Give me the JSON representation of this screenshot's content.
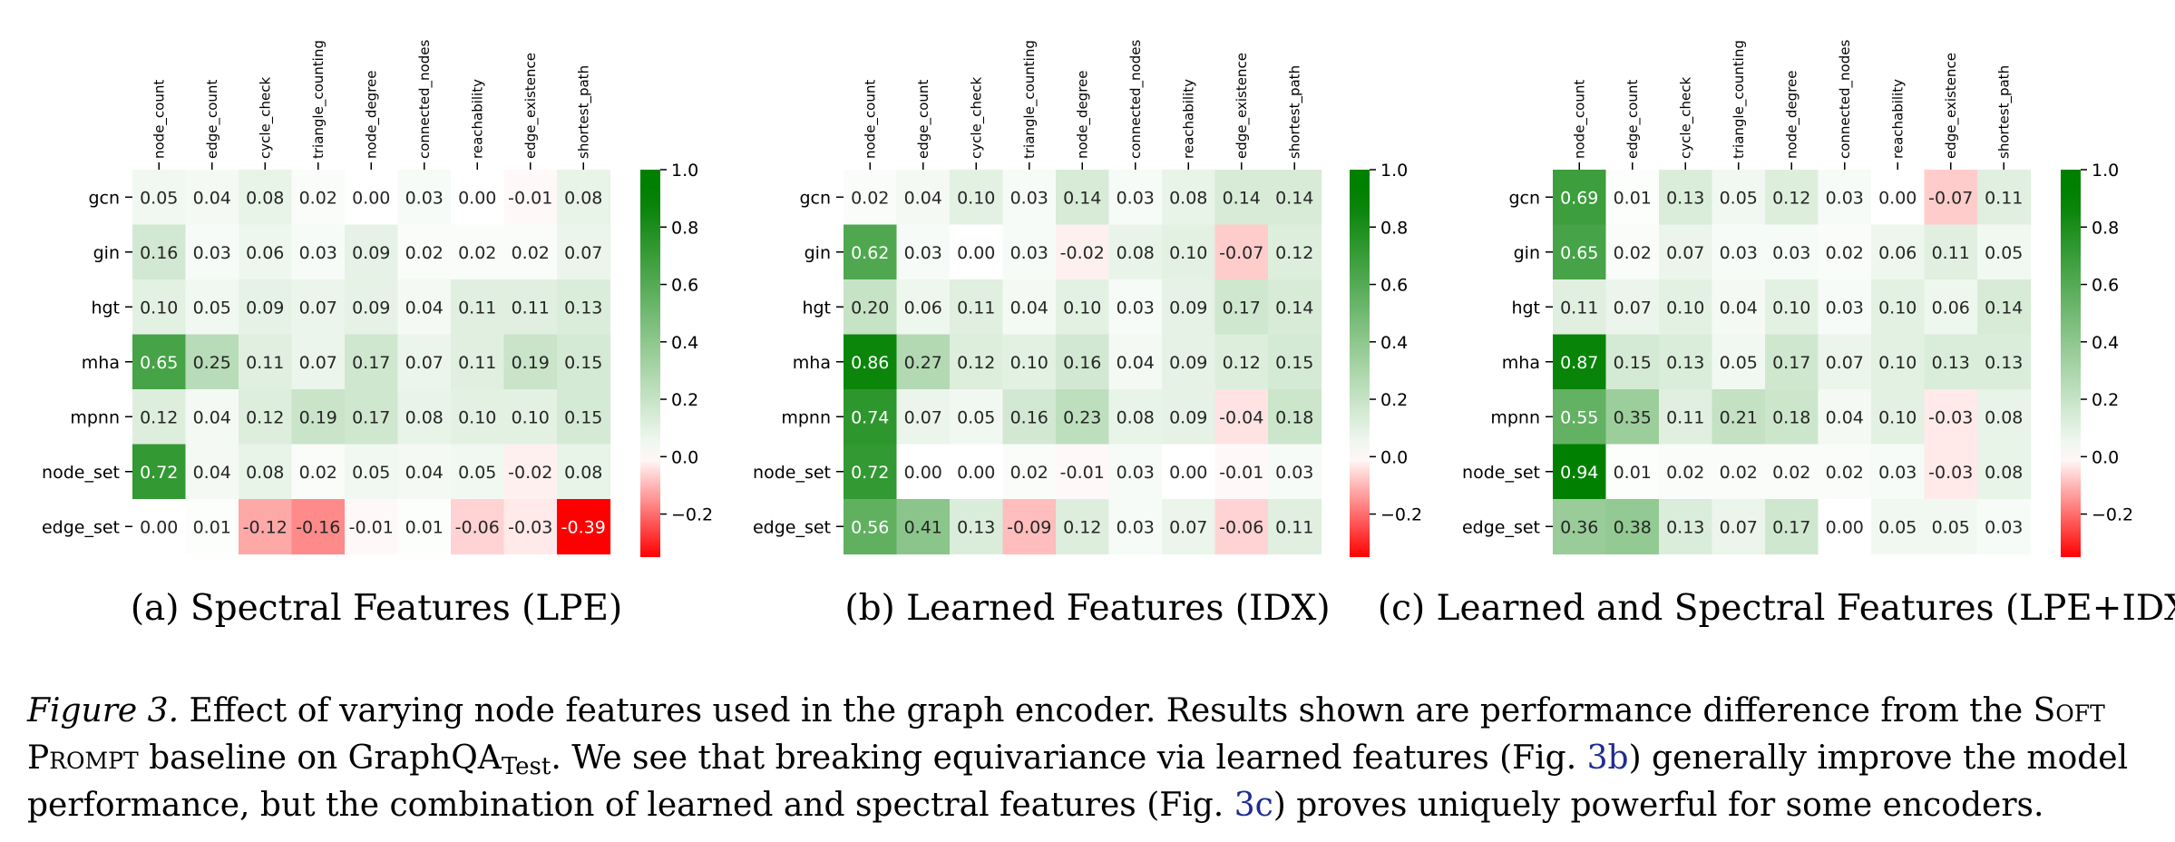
{
  "chart_data": [
    {
      "type": "heatmap",
      "panel_label": "(a) Spectral Features (LPE)",
      "x_labels": [
        "node_count",
        "edge_count",
        "cycle_check",
        "triangle_counting",
        "node_degree",
        "connected_nodes",
        "reachability",
        "edge_existence",
        "shortest_path"
      ],
      "y_labels": [
        "gcn",
        "gin",
        "hgt",
        "mha",
        "mpnn",
        "node_set",
        "edge_set"
      ],
      "values": [
        [
          0.05,
          0.04,
          0.08,
          0.02,
          0.0,
          0.03,
          0.0,
          -0.01,
          0.08
        ],
        [
          0.16,
          0.03,
          0.06,
          0.03,
          0.09,
          0.02,
          0.02,
          0.02,
          0.07
        ],
        [
          0.1,
          0.05,
          0.09,
          0.07,
          0.09,
          0.04,
          0.11,
          0.11,
          0.13
        ],
        [
          0.65,
          0.25,
          0.11,
          0.07,
          0.17,
          0.07,
          0.11,
          0.19,
          0.15
        ],
        [
          0.12,
          0.04,
          0.12,
          0.19,
          0.17,
          0.08,
          0.1,
          0.1,
          0.15
        ],
        [
          0.72,
          0.04,
          0.08,
          0.02,
          0.05,
          0.04,
          0.05,
          -0.02,
          0.08
        ],
        [
          0.0,
          0.01,
          -0.12,
          -0.16,
          -0.01,
          0.01,
          -0.06,
          -0.03,
          -0.39
        ]
      ],
      "colorbar_ticks": [
        "1.0",
        "0.8",
        "0.6",
        "0.4",
        "0.2",
        "0.0",
        "−0.2"
      ],
      "colorbar_range": [
        -0.35,
        1.0
      ]
    },
    {
      "type": "heatmap",
      "panel_label": "(b) Learned Features (IDX)",
      "x_labels": [
        "node_count",
        "edge_count",
        "cycle_check",
        "triangle_counting",
        "node_degree",
        "connected_nodes",
        "reachability",
        "edge_existence",
        "shortest_path"
      ],
      "y_labels": [
        "gcn",
        "gin",
        "hgt",
        "mha",
        "mpnn",
        "node_set",
        "edge_set"
      ],
      "values": [
        [
          0.02,
          0.04,
          0.1,
          0.03,
          0.14,
          0.03,
          0.08,
          0.14,
          0.14
        ],
        [
          0.62,
          0.03,
          0.0,
          0.03,
          -0.02,
          0.08,
          0.1,
          -0.07,
          0.12
        ],
        [
          0.2,
          0.06,
          0.11,
          0.04,
          0.1,
          0.03,
          0.09,
          0.17,
          0.14
        ],
        [
          0.86,
          0.27,
          0.12,
          0.1,
          0.16,
          0.04,
          0.09,
          0.12,
          0.15
        ],
        [
          0.74,
          0.07,
          0.05,
          0.16,
          0.23,
          0.08,
          0.09,
          -0.04,
          0.18
        ],
        [
          0.72,
          0.0,
          0.0,
          0.02,
          -0.01,
          0.03,
          0.0,
          -0.01,
          0.03
        ],
        [
          0.56,
          0.41,
          0.13,
          -0.09,
          0.12,
          0.03,
          0.07,
          -0.06,
          0.11
        ]
      ],
      "colorbar_ticks": [
        "1.0",
        "0.8",
        "0.6",
        "0.4",
        "0.2",
        "0.0",
        "−0.2"
      ],
      "colorbar_range": [
        -0.35,
        1.0
      ]
    },
    {
      "type": "heatmap",
      "panel_label": "(c) Learned and Spectral Features (LPE+IDX)",
      "x_labels": [
        "node_count",
        "edge_count",
        "cycle_check",
        "triangle_counting",
        "node_degree",
        "connected_nodes",
        "reachability",
        "edge_existence",
        "shortest_path"
      ],
      "y_labels": [
        "gcn",
        "gin",
        "hgt",
        "mha",
        "mpnn",
        "node_set",
        "edge_set"
      ],
      "values": [
        [
          0.69,
          0.01,
          0.13,
          0.05,
          0.12,
          0.03,
          0.0,
          -0.07,
          0.11
        ],
        [
          0.65,
          0.02,
          0.07,
          0.03,
          0.03,
          0.02,
          0.06,
          0.11,
          0.05
        ],
        [
          0.11,
          0.07,
          0.1,
          0.04,
          0.1,
          0.03,
          0.1,
          0.06,
          0.14
        ],
        [
          0.87,
          0.15,
          0.13,
          0.05,
          0.17,
          0.07,
          0.1,
          0.13,
          0.13
        ],
        [
          0.55,
          0.35,
          0.11,
          0.21,
          0.18,
          0.04,
          0.1,
          -0.03,
          0.08
        ],
        [
          0.94,
          0.01,
          0.02,
          0.02,
          0.02,
          0.02,
          0.03,
          -0.03,
          0.08
        ],
        [
          0.36,
          0.38,
          0.13,
          0.07,
          0.17,
          0.0,
          0.05,
          0.05,
          0.03
        ]
      ],
      "colorbar_ticks": [
        "1.0",
        "0.8",
        "0.6",
        "0.4",
        "0.2",
        "0.0",
        "−0.2"
      ],
      "colorbar_range": [
        -0.35,
        1.0
      ]
    }
  ],
  "caption": {
    "label": "Figure 3.",
    "text_1": " Effect of varying node features used in the graph encoder. Results shown are performance difference from the ",
    "soft_prompt": "Soft Prompt",
    "text_2": " baseline on GraphQA",
    "subscript": "Test",
    "text_3": ". We see that breaking equivariance via learned features (Fig. ",
    "ref_1": "3b",
    "text_4": ") generally improve the model performance, but the combination of learned and spectral features (Fig. ",
    "ref_2": "3c",
    "text_5": ") proves uniquely powerful for some encoders."
  },
  "colors": {
    "positive": "#008000",
    "negative": "#ff0000",
    "zero": "#ffffff",
    "reference_link": "#1f2c8f"
  }
}
